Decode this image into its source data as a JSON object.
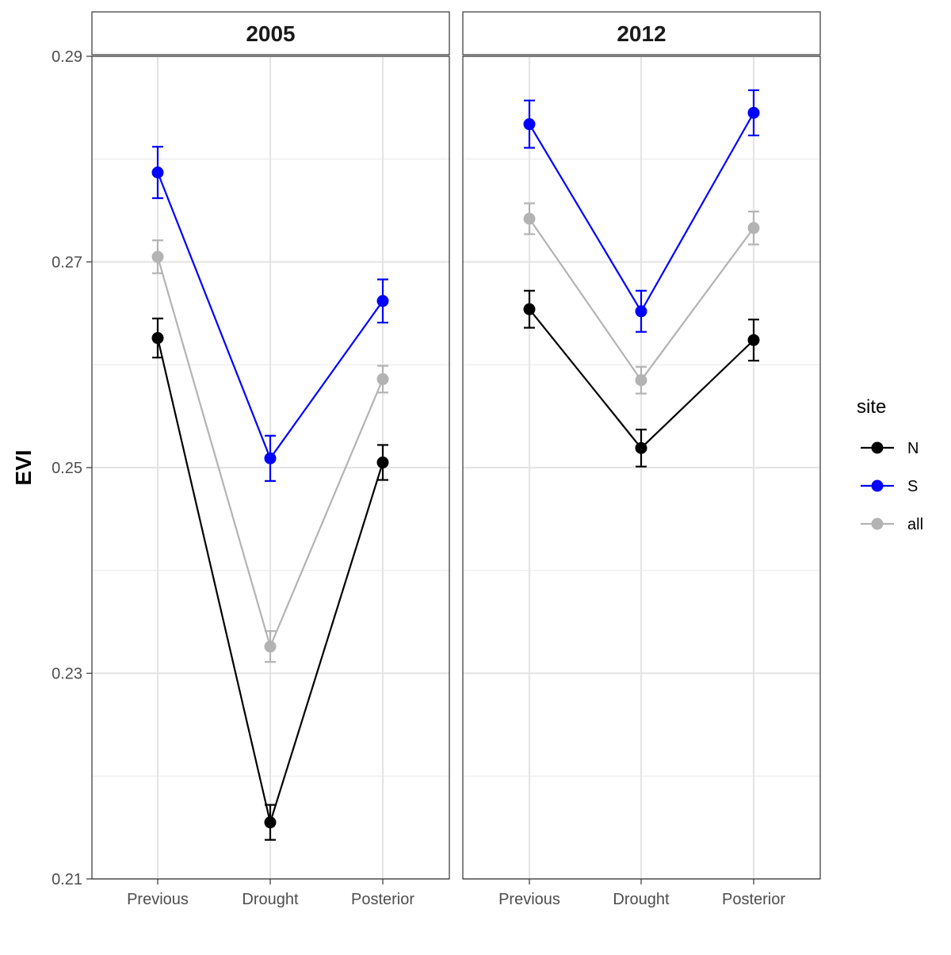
{
  "chart_data": {
    "type": "line",
    "ylabel": "EVI",
    "xlabel": "",
    "ylim": [
      0.21,
      0.29
    ],
    "yticks": [
      0.21,
      0.23,
      0.25,
      0.27,
      0.29
    ],
    "grid": true,
    "legend": {
      "title": "site",
      "position": "right",
      "entries": [
        "N",
        "S",
        "all"
      ]
    },
    "categories": [
      "Previous",
      "Drought",
      "Posterior"
    ],
    "colors": {
      "N": "#000000",
      "S": "#0000ff",
      "all": "#b3b3b3"
    },
    "panels": [
      {
        "title": "2005",
        "series": [
          {
            "name": "N",
            "values": [
              0.2626,
              0.2155,
              0.2505
            ],
            "errors": [
              0.0019,
              0.0017,
              0.0017
            ]
          },
          {
            "name": "S",
            "values": [
              0.2787,
              0.2509,
              0.2662
            ],
            "errors": [
              0.0025,
              0.0022,
              0.0021
            ]
          },
          {
            "name": "all",
            "values": [
              0.2705,
              0.2326,
              0.2586
            ],
            "errors": [
              0.0016,
              0.0015,
              0.0013
            ]
          }
        ]
      },
      {
        "title": "2012",
        "series": [
          {
            "name": "N",
            "values": [
              0.2654,
              0.2519,
              0.2624
            ],
            "errors": [
              0.0018,
              0.0018,
              0.002
            ]
          },
          {
            "name": "S",
            "values": [
              0.2834,
              0.2652,
              0.2845
            ],
            "errors": [
              0.0023,
              0.002,
              0.0022
            ]
          },
          {
            "name": "all",
            "values": [
              0.2742,
              0.2585,
              0.2733
            ],
            "errors": [
              0.0015,
              0.0013,
              0.0016
            ]
          }
        ]
      }
    ]
  }
}
